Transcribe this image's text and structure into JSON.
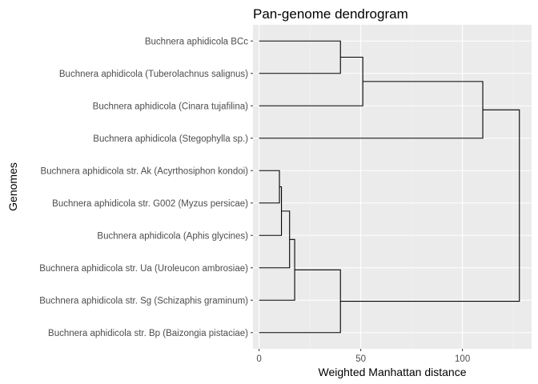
{
  "chart_data": {
    "type": "dendrogram",
    "title": "Pan-genome dendrogram",
    "xlabel": "Weighted Manhattan distance",
    "ylabel": "Genomes",
    "xlim": [
      -3,
      134
    ],
    "x_ticks": [
      0,
      50,
      100
    ],
    "x_minor_ticks": [
      25,
      75,
      125
    ],
    "grid": true,
    "background": "#ebebeb",
    "leaves": [
      "Buchnera aphidicola BCc",
      "Buchnera aphidicola (Tuberolachnus salignus)",
      "Buchnera aphidicola (Cinara tujafilina)",
      "Buchnera aphidicola (Stegophylla sp.)",
      "Buchnera aphidicola str. Ak (Acyrthosiphon kondoi)",
      "Buchnera aphidicola str. G002 (Myzus persicae)",
      "Buchnera aphidicola (Aphis glycines)",
      "Buchnera aphidicola str. Ua (Uroleucon ambrosiae)",
      "Buchnera aphidicola str. Sg (Schizaphis graminum)",
      "Buchnera aphidicola str. Bp (Baizongia pistaciae)"
    ],
    "merges": [
      {
        "id": "n1",
        "left": 4,
        "right": 5,
        "height": 10
      },
      {
        "id": "n2",
        "left": "n1",
        "right": 6,
        "height": 11
      },
      {
        "id": "n3",
        "left": "n2",
        "right": 7,
        "height": 15
      },
      {
        "id": "n4",
        "left": "n3",
        "right": 8,
        "height": 17.5
      },
      {
        "id": "n5",
        "left": 0,
        "right": 1,
        "height": 40
      },
      {
        "id": "n6",
        "left": "n4",
        "right": 9,
        "height": 40
      },
      {
        "id": "n7",
        "left": "n5",
        "right": 2,
        "height": 51
      },
      {
        "id": "n8",
        "left": "n7",
        "right": 3,
        "height": 110
      },
      {
        "id": "n9",
        "left": "n8",
        "right": "n6",
        "height": 128
      }
    ]
  }
}
